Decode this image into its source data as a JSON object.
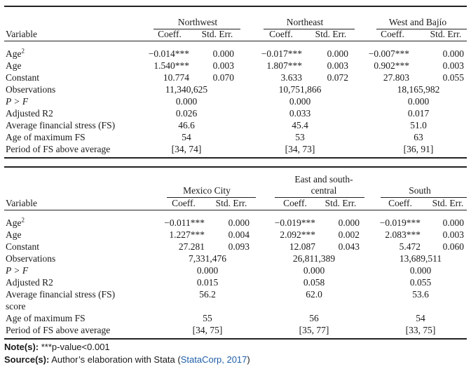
{
  "panels": [
    {
      "variable_header": "Variable",
      "coeff_label": "Coeff.",
      "se_label": "Std. Err.",
      "regions": [
        {
          "name": "Northwest"
        },
        {
          "name": "Northeast"
        },
        {
          "name": "West and Bajío"
        }
      ],
      "rows": [
        {
          "label": "Age",
          "sup": "2",
          "italic": false,
          "cells": [
            [
              "−0.014***",
              "0.000"
            ],
            [
              "−0.017***",
              "0.000"
            ],
            [
              "−0.007***",
              "0.000"
            ]
          ]
        },
        {
          "label": "Age",
          "sup": "",
          "italic": false,
          "cells": [
            [
              "1.540***",
              "0.003"
            ],
            [
              "1.807***",
              "0.003"
            ],
            [
              "0.902***",
              "0.003"
            ]
          ]
        },
        {
          "label": "Constant",
          "sup": "",
          "italic": false,
          "cells": [
            [
              "10.774",
              "0.070"
            ],
            [
              "3.633",
              "0.072"
            ],
            [
              "27.803",
              "0.055"
            ]
          ]
        },
        {
          "label": "Observations",
          "sup": "",
          "italic": false,
          "merged": [
            "11,340,625",
            "10,751,866",
            "18,165,982"
          ]
        },
        {
          "label": "P > F",
          "sup": "",
          "italic": true,
          "merged": [
            "0.000",
            "0.000",
            "0.000"
          ]
        },
        {
          "label": "Adjusted R2",
          "sup": "",
          "italic": false,
          "merged": [
            "0.026",
            "0.033",
            "0.017"
          ]
        },
        {
          "label": "Average financial stress (FS)",
          "sup": "",
          "italic": false,
          "merged": [
            "46.6",
            "45.4",
            "51.0"
          ]
        },
        {
          "label": "Age of maximum FS",
          "sup": "",
          "italic": false,
          "merged": [
            "54",
            "53",
            "63"
          ]
        },
        {
          "label": "Period of FS above average",
          "sup": "",
          "italic": false,
          "merged": [
            "[34, 74]",
            "[34, 73]",
            "[36, 91]"
          ]
        }
      ]
    },
    {
      "variable_header": "Variable",
      "coeff_label": "Coeff.",
      "se_label": "Std. Err.",
      "regions": [
        {
          "name": "Mexico City"
        },
        {
          "name": "East and south-",
          "name2": "central"
        },
        {
          "name": "South"
        }
      ],
      "rows": [
        {
          "label": "Age",
          "sup": "2",
          "italic": false,
          "cells": [
            [
              "−0.011***",
              "0.000"
            ],
            [
              "−0.019***",
              "0.000"
            ],
            [
              "−0.019***",
              "0.000"
            ]
          ]
        },
        {
          "label": "Age",
          "sup": "",
          "italic": false,
          "cells": [
            [
              "1.227***",
              "0.004"
            ],
            [
              "2.092***",
              "0.002"
            ],
            [
              "2.083***",
              "0.003"
            ]
          ]
        },
        {
          "label": "Constant",
          "sup": "",
          "italic": false,
          "cells": [
            [
              "27.281",
              "0.093"
            ],
            [
              "12.087",
              "0.043"
            ],
            [
              "5.472",
              "0.060"
            ]
          ]
        },
        {
          "label": "Observations",
          "sup": "",
          "italic": false,
          "merged": [
            "7,331,476",
            "26,811,389",
            "13,689,511"
          ]
        },
        {
          "label": "P > F",
          "sup": "",
          "italic": true,
          "merged": [
            "0.000",
            "0.000",
            "0.000"
          ]
        },
        {
          "label": "Adjusted R2",
          "sup": "",
          "italic": false,
          "merged": [
            "0.015",
            "0.058",
            "0.055"
          ]
        },
        {
          "label": "Average financial stress (FS)",
          "label2": "score",
          "sup": "",
          "italic": false,
          "merged": [
            "56.2",
            "62.0",
            "53.6"
          ]
        },
        {
          "label": "Age of maximum FS",
          "sup": "",
          "italic": false,
          "merged": [
            "55",
            "56",
            "54"
          ]
        },
        {
          "label": "Period of FS above average",
          "sup": "",
          "italic": false,
          "merged": [
            "[34, 75]",
            "[35, 77]",
            "[33, 75]"
          ]
        }
      ]
    }
  ],
  "notes": {
    "note_label": "Note(s):",
    "note_text": "***p-value<0.001",
    "source_label": "Source(s):",
    "source_text": "Author’s elaboration with Stata (",
    "source_link": "StataCorp, 2017",
    "source_close": ")"
  }
}
